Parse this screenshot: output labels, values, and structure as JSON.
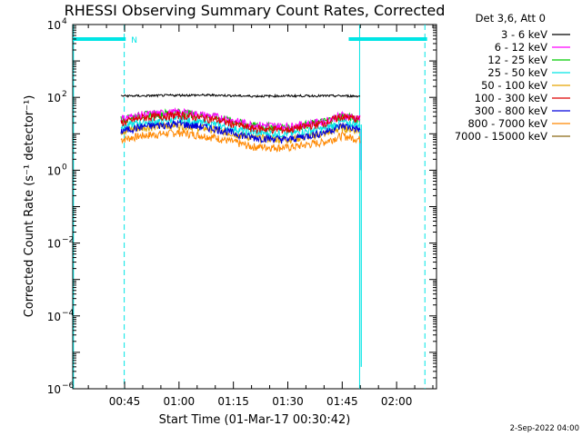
{
  "chart_data": {
    "type": "line",
    "title": "RHESSI Observing Summary Count Rates, Corrected",
    "xlabel": "Start Time (01-Mar-17 00:30:42)",
    "ylabel": "Corrected Count Rate (s⁻¹ detector⁻¹)",
    "y_scale": "log",
    "y_exponent_range": [
      -6,
      4
    ],
    "ylim": [
      1e-06,
      10000
    ],
    "xlim": [
      30.7,
      131.0
    ],
    "x_unit": "minutes after 00:00 UT",
    "yticks": [
      {
        "exp": -6,
        "label": "10",
        "sup": "−6"
      },
      {
        "exp": -4,
        "label": "10",
        "sup": "−4"
      },
      {
        "exp": -2,
        "label": "10",
        "sup": "−2"
      },
      {
        "exp": 0,
        "label": "10",
        "sup": "0"
      },
      {
        "exp": 2,
        "label": "10",
        "sup": "2"
      },
      {
        "exp": 4,
        "label": "10",
        "sup": "4"
      }
    ],
    "xticks": [
      {
        "t": 45,
        "label": "00:45"
      },
      {
        "t": 60,
        "label": "01:00"
      },
      {
        "t": 75,
        "label": "01:15"
      },
      {
        "t": 90,
        "label": "01:30"
      },
      {
        "t": 105,
        "label": "01:45"
      },
      {
        "t": 120,
        "label": "02:00"
      }
    ],
    "legend_title": "Det 3,6, Att 0",
    "legend_position": "right",
    "series": [
      {
        "name": "3 - 6 keV",
        "color": "#000000",
        "t": [
          44,
          50,
          60,
          70,
          80,
          90,
          100,
          105,
          110
        ],
        "values": [
          110,
          110,
          115,
          115,
          108,
          110,
          110,
          110,
          108
        ]
      },
      {
        "name": "6 - 12 keV",
        "color": "#ff00ff",
        "t": [
          44,
          50,
          60,
          70,
          80,
          90,
          100,
          105,
          110
        ],
        "values": [
          26,
          34,
          40,
          30,
          18,
          16,
          22,
          33,
          26
        ]
      },
      {
        "name": "12 - 25 keV",
        "color": "#00cc00",
        "t": [
          44,
          50,
          60,
          70,
          80,
          90,
          100,
          105,
          110
        ],
        "values": [
          25,
          33,
          40,
          29,
          17,
          15,
          22,
          32,
          25
        ]
      },
      {
        "name": "25 - 50 keV",
        "color": "#00e5e5",
        "t": [
          44,
          50,
          60,
          70,
          80,
          90,
          100,
          105,
          110
        ],
        "values": [
          16,
          21,
          25,
          18,
          11,
          10,
          14,
          21,
          18
        ]
      },
      {
        "name": "50 - 100 keV",
        "color": "#e5a500",
        "t": [
          44,
          50,
          60,
          70,
          80,
          90,
          100,
          105,
          110
        ],
        "values": [
          12,
          15,
          18,
          13,
          8,
          7,
          10,
          15,
          12
        ]
      },
      {
        "name": "100 - 300 keV",
        "color": "#dd0000",
        "t": [
          44,
          50,
          60,
          70,
          80,
          90,
          100,
          105,
          110
        ],
        "values": [
          20,
          28,
          33,
          25,
          14,
          13,
          20,
          30,
          25
        ]
      },
      {
        "name": "300 - 800 keV",
        "color": "#0000dd",
        "t": [
          44,
          50,
          60,
          70,
          80,
          90,
          100,
          105,
          110
        ],
        "values": [
          12,
          16,
          19,
          14,
          8,
          7,
          11,
          17,
          13
        ]
      },
      {
        "name": "800 - 7000 keV",
        "color": "#ff8800",
        "t": [
          44,
          50,
          60,
          70,
          80,
          90,
          100,
          105,
          110
        ],
        "values": [
          7,
          9,
          11,
          8,
          4.5,
          4.2,
          6,
          9,
          7
        ]
      },
      {
        "name": "7000 - 15000 keV",
        "color": "#8b6914",
        "t": [],
        "values": []
      }
    ],
    "flags": [
      {
        "label": "N",
        "color": "#00e5e5",
        "t_start": 30.7,
        "t_end": 45.3,
        "level_exp": 3.6
      },
      {
        "label": "",
        "color": "#00e5e5",
        "t_start": 106.8,
        "t_end": 128.4,
        "level_exp": 3.6
      }
    ],
    "night_lines": [
      {
        "t": 30.9,
        "style": "solid"
      },
      {
        "t": 44.9,
        "style": "dashed"
      },
      {
        "t": 109.8,
        "style": "solid"
      },
      {
        "t": 127.8,
        "style": "dashed"
      }
    ],
    "grid": false
  },
  "footer": {
    "date_stamp": "2-Sep-2022 04:00"
  }
}
